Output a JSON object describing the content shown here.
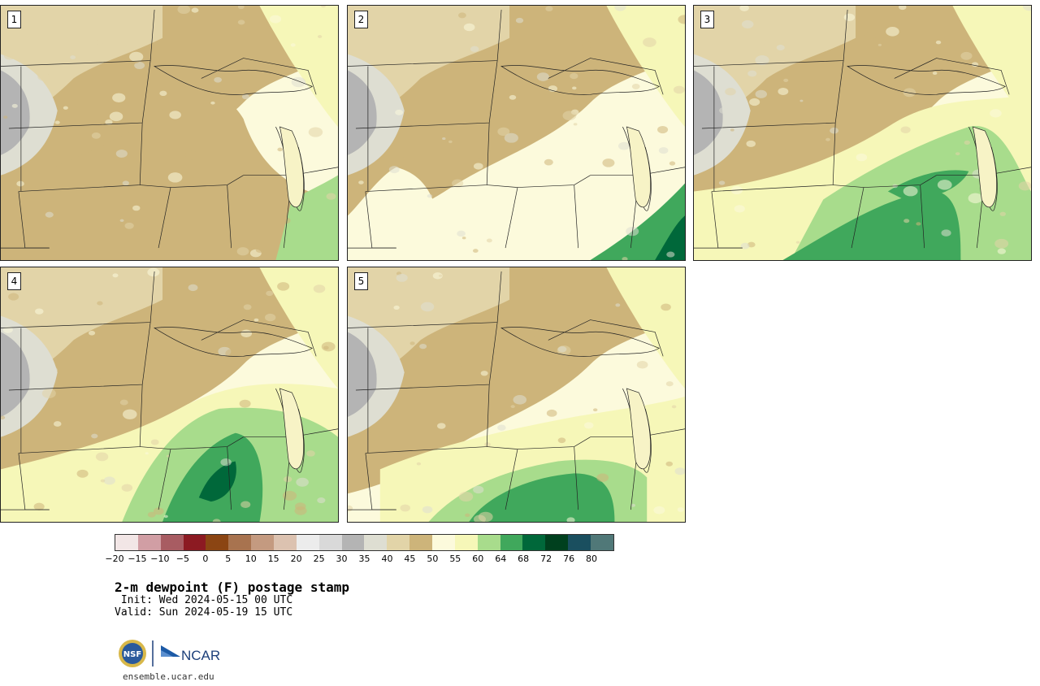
{
  "panels": [
    {
      "label": "1",
      "style": "dry"
    },
    {
      "label": "2",
      "style": "dry-se"
    },
    {
      "label": "3",
      "style": "moist"
    },
    {
      "label": "4",
      "style": "very-moist"
    },
    {
      "label": "5",
      "style": "mid"
    }
  ],
  "colorbar": {
    "ticks": [
      "−20",
      "−15",
      "−10",
      "−5",
      "0",
      "5",
      "10",
      "15",
      "20",
      "25",
      "30",
      "35",
      "40",
      "45",
      "50",
      "55",
      "60",
      "64",
      "68",
      "72",
      "76",
      "80"
    ],
    "colors": [
      "#f2e6e6",
      "#d19ea4",
      "#a85c62",
      "#8c1a22",
      "#8b4513",
      "#a8734f",
      "#c49a80",
      "#dcc2b0",
      "#ececec",
      "#d9d9d9",
      "#b4b4b4",
      "#deded2",
      "#e2d4a8",
      "#cdb47a",
      "#fcfadc",
      "#f6f7b8",
      "#a8dc8c",
      "#40a85c",
      "#00683a",
      "#00401e",
      "#1a4f5f",
      "#507878"
    ]
  },
  "title": "2-m dewpoint (F) postage stamp",
  "init": " Init: Wed 2024-05-15 00 UTC",
  "valid": "Valid: Sun 2024-05-19 15 UTC",
  "site": "ensemble.ucar.edu",
  "logos": {
    "nsf": "NSF",
    "ncar": "NCAR"
  },
  "colors": {
    "tan": "#cdb47a",
    "lightTan": "#e2d4a8",
    "grey": "#deded2",
    "darkGrey": "#b4b4b4",
    "cream": "#fcfadc",
    "yellow": "#f6f7b8",
    "lightGreen": "#a8dc8c",
    "green": "#40a85c",
    "darkGreen": "#00683a"
  }
}
